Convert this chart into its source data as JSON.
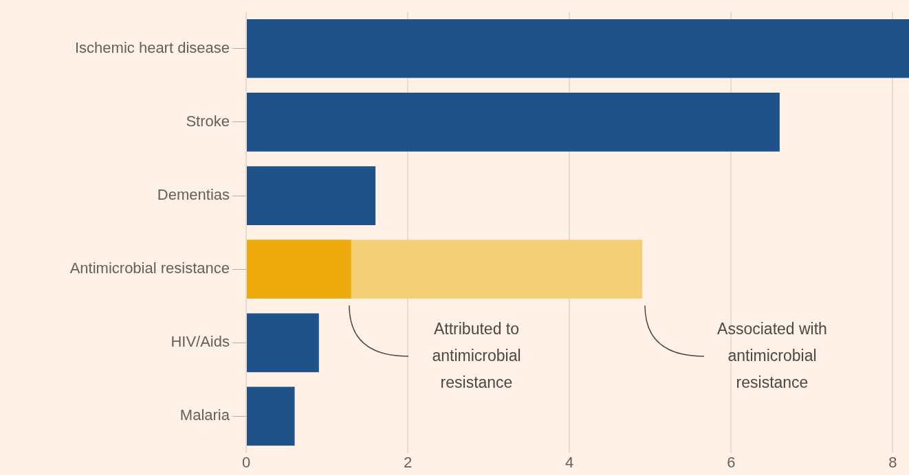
{
  "chart_data": {
    "type": "bar",
    "orientation": "horizontal",
    "stacked": true,
    "categories": [
      "Ischemic heart disease",
      "Stroke",
      "Dementias",
      "Antimicrobial resistance",
      "HIV/Aids",
      "Malaria"
    ],
    "series": [
      {
        "color": "#1f5289",
        "values": [
          8.2,
          6.6,
          1.6,
          null,
          0.9,
          0.6
        ]
      },
      {
        "color": "#eeaa0a",
        "values": [
          null,
          null,
          null,
          1.3,
          null,
          null
        ]
      },
      {
        "color": "#f5cf75",
        "values": [
          null,
          null,
          null,
          3.6,
          null,
          null
        ]
      }
    ],
    "xlim": [
      0,
      8.2
    ],
    "xticks": [
      0,
      2,
      4,
      6,
      8
    ],
    "grid": "x",
    "legend": false,
    "annotations": [
      "Attributed to antimicrobial resistance",
      "Associated with antimicrobial resistance"
    ]
  }
}
